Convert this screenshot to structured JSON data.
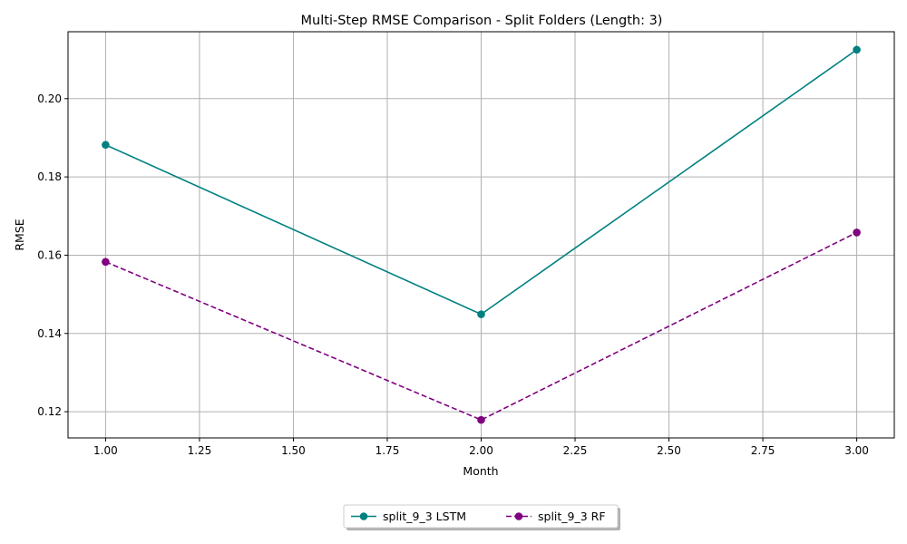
{
  "chart_data": {
    "type": "line",
    "title": "Multi-Step RMSE Comparison - Split Folders (Length: 3)",
    "xlabel": "Month",
    "ylabel": "RMSE",
    "xlim": [
      0.9,
      3.1
    ],
    "ylim": [
      0.1133,
      0.2171
    ],
    "xticks": [
      1.0,
      1.25,
      1.5,
      1.75,
      2.0,
      2.25,
      2.5,
      2.75,
      3.0
    ],
    "xtick_labels": [
      "1.00",
      "1.25",
      "1.50",
      "1.75",
      "2.00",
      "2.25",
      "2.50",
      "2.75",
      "3.00"
    ],
    "yticks": [
      0.12,
      0.14,
      0.16,
      0.18,
      0.2
    ],
    "ytick_labels": [
      "0.12",
      "0.14",
      "0.16",
      "0.18",
      "0.20"
    ],
    "grid": true,
    "legend_position": "bottom-center, outside plot",
    "x": [
      1,
      2,
      3
    ],
    "series": [
      {
        "name": "split_9_3 LSTM",
        "values": [
          0.1882,
          0.1449,
          0.2125
        ],
        "color": "#008080",
        "dash": "solid",
        "marker": "circle"
      },
      {
        "name": "split_9_3 RF",
        "values": [
          0.1583,
          0.1179,
          0.1658
        ],
        "color": "#800080",
        "dash": "dashed",
        "marker": "circle"
      }
    ]
  }
}
